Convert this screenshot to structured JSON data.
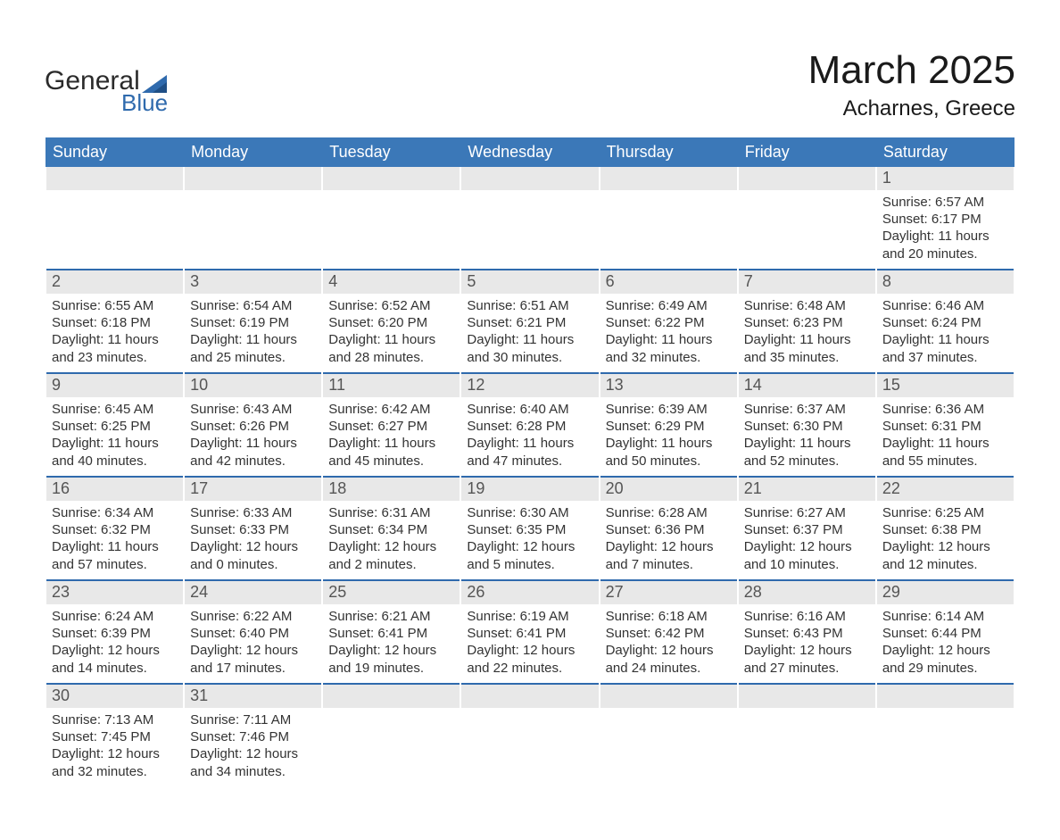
{
  "brand": {
    "word1": "General",
    "word2": "Blue",
    "mark_color": "#2f6aad"
  },
  "title": "March 2025",
  "subtitle": "Acharnes, Greece",
  "colors": {
    "header_blue": "#3b78b8",
    "row_sep_blue": "#2f6aad",
    "daynum_bar": "#e8e8e8",
    "text": "#333333"
  },
  "day_headers": [
    "Sunday",
    "Monday",
    "Tuesday",
    "Wednesday",
    "Thursday",
    "Friday",
    "Saturday"
  ],
  "weeks": [
    [
      {
        "day": null
      },
      {
        "day": null
      },
      {
        "day": null
      },
      {
        "day": null
      },
      {
        "day": null
      },
      {
        "day": null
      },
      {
        "day": 1,
        "sunrise": "6:57 AM",
        "sunset": "6:17 PM",
        "daylight_l1": "Daylight: 11 hours",
        "daylight_l2": "and 20 minutes."
      }
    ],
    [
      {
        "day": 2,
        "sunrise": "6:55 AM",
        "sunset": "6:18 PM",
        "daylight_l1": "Daylight: 11 hours",
        "daylight_l2": "and 23 minutes."
      },
      {
        "day": 3,
        "sunrise": "6:54 AM",
        "sunset": "6:19 PM",
        "daylight_l1": "Daylight: 11 hours",
        "daylight_l2": "and 25 minutes."
      },
      {
        "day": 4,
        "sunrise": "6:52 AM",
        "sunset": "6:20 PM",
        "daylight_l1": "Daylight: 11 hours",
        "daylight_l2": "and 28 minutes."
      },
      {
        "day": 5,
        "sunrise": "6:51 AM",
        "sunset": "6:21 PM",
        "daylight_l1": "Daylight: 11 hours",
        "daylight_l2": "and 30 minutes."
      },
      {
        "day": 6,
        "sunrise": "6:49 AM",
        "sunset": "6:22 PM",
        "daylight_l1": "Daylight: 11 hours",
        "daylight_l2": "and 32 minutes."
      },
      {
        "day": 7,
        "sunrise": "6:48 AM",
        "sunset": "6:23 PM",
        "daylight_l1": "Daylight: 11 hours",
        "daylight_l2": "and 35 minutes."
      },
      {
        "day": 8,
        "sunrise": "6:46 AM",
        "sunset": "6:24 PM",
        "daylight_l1": "Daylight: 11 hours",
        "daylight_l2": "and 37 minutes."
      }
    ],
    [
      {
        "day": 9,
        "sunrise": "6:45 AM",
        "sunset": "6:25 PM",
        "daylight_l1": "Daylight: 11 hours",
        "daylight_l2": "and 40 minutes."
      },
      {
        "day": 10,
        "sunrise": "6:43 AM",
        "sunset": "6:26 PM",
        "daylight_l1": "Daylight: 11 hours",
        "daylight_l2": "and 42 minutes."
      },
      {
        "day": 11,
        "sunrise": "6:42 AM",
        "sunset": "6:27 PM",
        "daylight_l1": "Daylight: 11 hours",
        "daylight_l2": "and 45 minutes."
      },
      {
        "day": 12,
        "sunrise": "6:40 AM",
        "sunset": "6:28 PM",
        "daylight_l1": "Daylight: 11 hours",
        "daylight_l2": "and 47 minutes."
      },
      {
        "day": 13,
        "sunrise": "6:39 AM",
        "sunset": "6:29 PM",
        "daylight_l1": "Daylight: 11 hours",
        "daylight_l2": "and 50 minutes."
      },
      {
        "day": 14,
        "sunrise": "6:37 AM",
        "sunset": "6:30 PM",
        "daylight_l1": "Daylight: 11 hours",
        "daylight_l2": "and 52 minutes."
      },
      {
        "day": 15,
        "sunrise": "6:36 AM",
        "sunset": "6:31 PM",
        "daylight_l1": "Daylight: 11 hours",
        "daylight_l2": "and 55 minutes."
      }
    ],
    [
      {
        "day": 16,
        "sunrise": "6:34 AM",
        "sunset": "6:32 PM",
        "daylight_l1": "Daylight: 11 hours",
        "daylight_l2": "and 57 minutes."
      },
      {
        "day": 17,
        "sunrise": "6:33 AM",
        "sunset": "6:33 PM",
        "daylight_l1": "Daylight: 12 hours",
        "daylight_l2": "and 0 minutes."
      },
      {
        "day": 18,
        "sunrise": "6:31 AM",
        "sunset": "6:34 PM",
        "daylight_l1": "Daylight: 12 hours",
        "daylight_l2": "and 2 minutes."
      },
      {
        "day": 19,
        "sunrise": "6:30 AM",
        "sunset": "6:35 PM",
        "daylight_l1": "Daylight: 12 hours",
        "daylight_l2": "and 5 minutes."
      },
      {
        "day": 20,
        "sunrise": "6:28 AM",
        "sunset": "6:36 PM",
        "daylight_l1": "Daylight: 12 hours",
        "daylight_l2": "and 7 minutes."
      },
      {
        "day": 21,
        "sunrise": "6:27 AM",
        "sunset": "6:37 PM",
        "daylight_l1": "Daylight: 12 hours",
        "daylight_l2": "and 10 minutes."
      },
      {
        "day": 22,
        "sunrise": "6:25 AM",
        "sunset": "6:38 PM",
        "daylight_l1": "Daylight: 12 hours",
        "daylight_l2": "and 12 minutes."
      }
    ],
    [
      {
        "day": 23,
        "sunrise": "6:24 AM",
        "sunset": "6:39 PM",
        "daylight_l1": "Daylight: 12 hours",
        "daylight_l2": "and 14 minutes."
      },
      {
        "day": 24,
        "sunrise": "6:22 AM",
        "sunset": "6:40 PM",
        "daylight_l1": "Daylight: 12 hours",
        "daylight_l2": "and 17 minutes."
      },
      {
        "day": 25,
        "sunrise": "6:21 AM",
        "sunset": "6:41 PM",
        "daylight_l1": "Daylight: 12 hours",
        "daylight_l2": "and 19 minutes."
      },
      {
        "day": 26,
        "sunrise": "6:19 AM",
        "sunset": "6:41 PM",
        "daylight_l1": "Daylight: 12 hours",
        "daylight_l2": "and 22 minutes."
      },
      {
        "day": 27,
        "sunrise": "6:18 AM",
        "sunset": "6:42 PM",
        "daylight_l1": "Daylight: 12 hours",
        "daylight_l2": "and 24 minutes."
      },
      {
        "day": 28,
        "sunrise": "6:16 AM",
        "sunset": "6:43 PM",
        "daylight_l1": "Daylight: 12 hours",
        "daylight_l2": "and 27 minutes."
      },
      {
        "day": 29,
        "sunrise": "6:14 AM",
        "sunset": "6:44 PM",
        "daylight_l1": "Daylight: 12 hours",
        "daylight_l2": "and 29 minutes."
      }
    ],
    [
      {
        "day": 30,
        "sunrise": "7:13 AM",
        "sunset": "7:45 PM",
        "daylight_l1": "Daylight: 12 hours",
        "daylight_l2": "and 32 minutes."
      },
      {
        "day": 31,
        "sunrise": "7:11 AM",
        "sunset": "7:46 PM",
        "daylight_l1": "Daylight: 12 hours",
        "daylight_l2": "and 34 minutes."
      },
      {
        "day": null
      },
      {
        "day": null
      },
      {
        "day": null
      },
      {
        "day": null
      },
      {
        "day": null
      }
    ]
  ],
  "labels": {
    "sunrise_prefix": "Sunrise: ",
    "sunset_prefix": "Sunset: "
  }
}
